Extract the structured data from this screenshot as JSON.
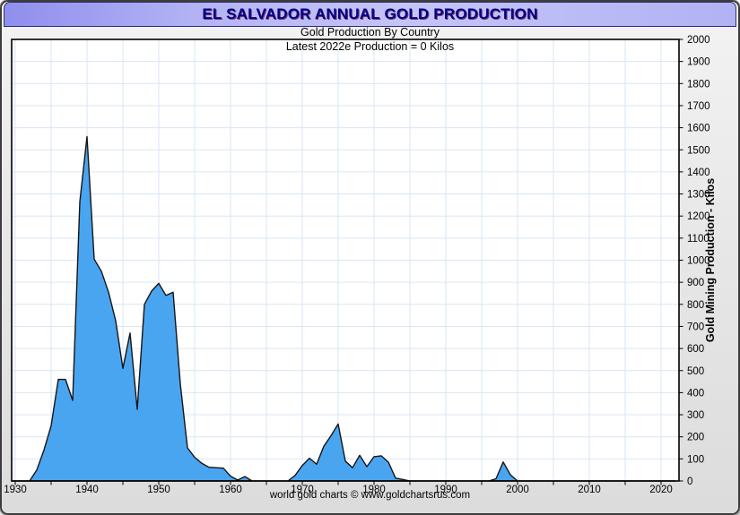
{
  "window": {
    "title": "EL SALVADOR ANNUAL GOLD PRODUCTION"
  },
  "footer": {
    "credit": "world gold charts © www.goldchartsrus.com"
  },
  "colors": {
    "area_fill": "#4AA5F0",
    "area_outline": "#151515",
    "grid": "#D9E6F4",
    "plot_border": "#000000",
    "plot_bg": "#FFFFFF",
    "title_text": "#00008B",
    "title_bar_start": "#8F8FEE",
    "title_bar_end": "#C4C4F8",
    "panel_bg": "#E7E7E7",
    "tick_text": "#000000"
  },
  "chart_data": {
    "type": "area",
    "title": "EL SALVADOR ANNUAL GOLD PRODUCTION",
    "subtitle": "Gold Production By Country",
    "annotation": "Latest 2022e Production = 0 Kilos",
    "xlabel": "",
    "ylabel": "Gold Mining Production - Kilos",
    "xlim": [
      1929.5,
      2022.5
    ],
    "ylim": [
      0,
      2000
    ],
    "grid": true,
    "x_ticks_labeled": [
      1930,
      1940,
      1950,
      1960,
      1970,
      1980,
      1990,
      2000,
      2010,
      2020
    ],
    "x_tick_minor_step": 5,
    "y_ticks": [
      0,
      100,
      200,
      300,
      400,
      500,
      600,
      700,
      800,
      900,
      1000,
      1100,
      1200,
      1300,
      1400,
      1500,
      1600,
      1700,
      1800,
      1900,
      2000
    ],
    "years": [
      1930,
      1931,
      1932,
      1933,
      1934,
      1935,
      1936,
      1937,
      1938,
      1939,
      1940,
      1941,
      1942,
      1943,
      1944,
      1945,
      1946,
      1947,
      1948,
      1949,
      1950,
      1951,
      1952,
      1953,
      1954,
      1955,
      1956,
      1957,
      1958,
      1959,
      1960,
      1961,
      1962,
      1963,
      1964,
      1965,
      1966,
      1967,
      1968,
      1969,
      1970,
      1971,
      1972,
      1973,
      1974,
      1975,
      1976,
      1977,
      1978,
      1979,
      1980,
      1981,
      1982,
      1983,
      1984,
      1985,
      1986,
      1987,
      1988,
      1989,
      1990,
      1991,
      1992,
      1993,
      1994,
      1995,
      1996,
      1997,
      1998,
      1999,
      2000,
      2001,
      2002,
      2003,
      2004,
      2005,
      2006,
      2007,
      2008,
      2009,
      2010,
      2011,
      2012,
      2013,
      2014,
      2015,
      2016,
      2017,
      2018,
      2019,
      2020,
      2021,
      2022
    ],
    "values": [
      0,
      0,
      0,
      50,
      140,
      250,
      460,
      460,
      365,
      1265,
      1560,
      1005,
      950,
      855,
      725,
      510,
      670,
      325,
      800,
      860,
      895,
      840,
      855,
      440,
      150,
      107,
      80,
      62,
      60,
      58,
      22,
      4,
      20,
      0,
      0,
      0,
      0,
      0,
      0,
      25,
      70,
      103,
      76,
      157,
      205,
      258,
      90,
      60,
      116,
      65,
      110,
      114,
      85,
      13,
      7,
      0,
      0,
      0,
      0,
      0,
      0,
      0,
      0,
      0,
      0,
      0,
      0,
      10,
      86,
      28,
      0,
      0,
      0,
      0,
      0,
      0,
      0,
      0,
      0,
      0,
      0,
      0,
      0,
      0,
      0,
      0,
      0,
      0,
      0,
      0,
      0,
      0,
      0
    ]
  }
}
